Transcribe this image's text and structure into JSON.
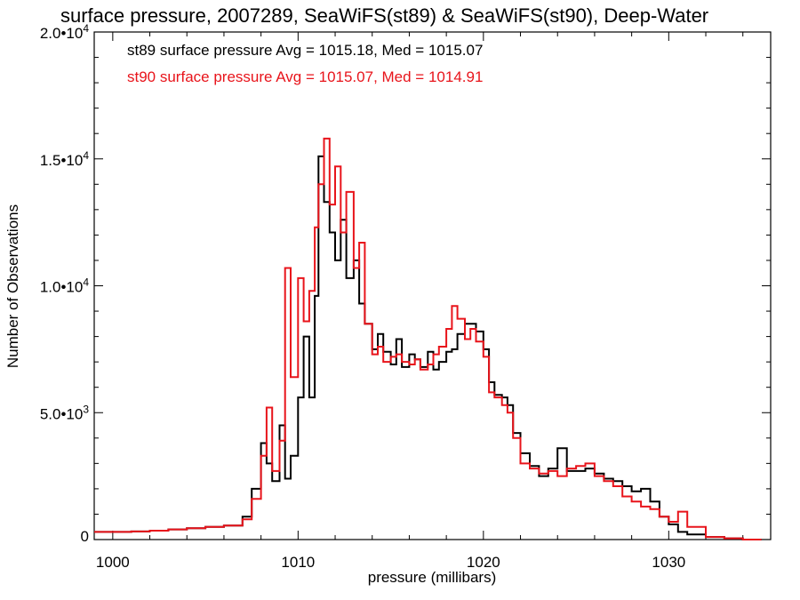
{
  "chart_data": {
    "type": "line",
    "title": "surface pressure, 2007289, SeaWiFS(st89) & SeaWiFS(st90), Deep-Water",
    "xlabel": "pressure (millibars)",
    "ylabel": "Number of Observations",
    "xlim": [
      999,
      1035.5
    ],
    "ylim": [
      0,
      20000
    ],
    "xticks": [
      1000,
      1010,
      1020,
      1030
    ],
    "xtick_labels": [
      "1000",
      "1010",
      "1020",
      "1030"
    ],
    "yticks": [
      0,
      5000,
      10000,
      15000,
      20000
    ],
    "ytick_labels": [
      {
        "base": "0",
        "exp": ""
      },
      {
        "base": "5.0•10",
        "exp": "3"
      },
      {
        "base": "1.0•10",
        "exp": "4"
      },
      {
        "base": "1.5•10",
        "exp": "4"
      },
      {
        "base": "2.0•10",
        "exp": "4"
      }
    ],
    "grid": false,
    "annotations": [
      {
        "text": "st89 surface pressure Avg = 1015.18, Med = 1015.07",
        "color": "#000000"
      },
      {
        "text": "st90 surface pressure Avg = 1015.07, Med = 1014.91",
        "color": "#e8141b"
      }
    ],
    "series": [
      {
        "name": "st89",
        "color": "#000000",
        "step": true,
        "x": [
          999,
          1000,
          1001,
          1002,
          1003,
          1004,
          1005,
          1006,
          1007,
          1007.5,
          1008,
          1008.3,
          1008.6,
          1009,
          1009.3,
          1009.6,
          1010,
          1010.3,
          1010.6,
          1010.9,
          1011.1,
          1011.4,
          1011.7,
          1012,
          1012.3,
          1012.6,
          1013,
          1013.3,
          1013.6,
          1014,
          1014.3,
          1014.6,
          1015,
          1015.3,
          1015.6,
          1016,
          1016.3,
          1016.6,
          1017,
          1017.3,
          1017.6,
          1018,
          1018.3,
          1018.6,
          1019,
          1019.3,
          1019.6,
          1020,
          1020.3,
          1020.6,
          1021,
          1021.3,
          1021.6,
          1022,
          1022.5,
          1023,
          1023.5,
          1024,
          1024.5,
          1025,
          1025.5,
          1026,
          1026.5,
          1027,
          1027.5,
          1028,
          1028.5,
          1029,
          1029.5,
          1030,
          1030.5,
          1031,
          1032,
          1033,
          1034
        ],
        "y": [
          300,
          300,
          320,
          350,
          400,
          450,
          500,
          550,
          900,
          2000,
          3800,
          3000,
          2300,
          4500,
          2400,
          3300,
          5600,
          8000,
          5600,
          9600,
          15100,
          13300,
          12100,
          11000,
          12600,
          10300,
          11000,
          9300,
          8500,
          7500,
          8100,
          7400,
          6900,
          7900,
          6800,
          7300,
          7100,
          6800,
          7400,
          6700,
          7000,
          7400,
          7500,
          8100,
          8500,
          8500,
          8200,
          7500,
          6200,
          5700,
          5600,
          5300,
          4200,
          3400,
          2900,
          2500,
          2800,
          3600,
          2700,
          2700,
          2800,
          2600,
          2400,
          2300,
          2100,
          1900,
          2000,
          1500,
          900,
          600,
          300,
          200,
          100,
          50,
          0
        ]
      },
      {
        "name": "st90",
        "color": "#e8141b",
        "step": true,
        "x": [
          999,
          1000,
          1001,
          1002,
          1003,
          1004,
          1005,
          1006,
          1007,
          1007.5,
          1008,
          1008.3,
          1008.6,
          1009,
          1009.3,
          1009.6,
          1010,
          1010.3,
          1010.6,
          1010.9,
          1011.1,
          1011.4,
          1011.7,
          1012,
          1012.3,
          1012.6,
          1013,
          1013.3,
          1013.6,
          1014,
          1014.3,
          1014.6,
          1015,
          1015.3,
          1015.6,
          1016,
          1016.3,
          1016.6,
          1017,
          1017.3,
          1017.6,
          1018,
          1018.3,
          1018.6,
          1019,
          1019.3,
          1019.6,
          1020,
          1020.3,
          1020.6,
          1021,
          1021.3,
          1021.6,
          1022,
          1022.5,
          1023,
          1023.5,
          1024,
          1024.5,
          1025,
          1025.5,
          1026,
          1026.5,
          1027,
          1027.5,
          1028,
          1028.5,
          1029,
          1029.5,
          1030,
          1030.5,
          1031,
          1032,
          1033,
          1034
        ],
        "y": [
          300,
          300,
          320,
          350,
          400,
          450,
          500,
          550,
          800,
          1600,
          3300,
          5200,
          2700,
          3900,
          10700,
          6400,
          10300,
          8600,
          9800,
          12300,
          14000,
          15800,
          13200,
          14700,
          12100,
          13700,
          10700,
          11700,
          8500,
          7300,
          7600,
          7000,
          7200,
          7300,
          7000,
          6900,
          7100,
          6700,
          6900,
          7300,
          7600,
          8300,
          9200,
          8700,
          7900,
          8300,
          7800,
          7200,
          5800,
          5600,
          5300,
          5000,
          4000,
          3000,
          2800,
          2600,
          2700,
          2500,
          2800,
          2900,
          3000,
          2500,
          2300,
          2100,
          1700,
          1500,
          1300,
          1200,
          900,
          700,
          1100,
          500,
          100,
          50,
          0
        ]
      }
    ]
  }
}
